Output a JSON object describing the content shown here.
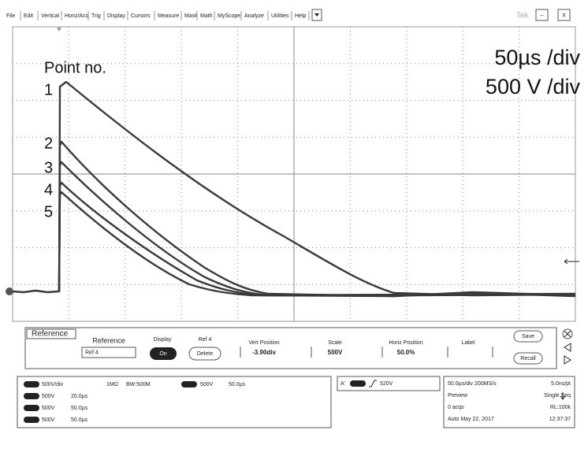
{
  "menu": {
    "items": [
      "File",
      "Edit",
      "Vertical",
      "Horiz/Acq",
      "Trig",
      "Display",
      "Cursors",
      "Measure",
      "Mask",
      "Math",
      "MyScope",
      "Analyze",
      "Utilities",
      "Help"
    ],
    "brand": "Tek",
    "minimize": "–",
    "close": "X"
  },
  "annotations": {
    "point_header": "Point no.",
    "points": [
      "1",
      "2",
      "3",
      "4",
      "5"
    ],
    "time_scale": "50µs /div",
    "volt_scale": "500 V /div"
  },
  "reference_panel": {
    "tab": "Reference",
    "reference_label": "Reference",
    "reference_value": "Ref 4",
    "display_label": "Display",
    "display_button": "On",
    "ref_label": "Ref 4",
    "delete_button": "Delete",
    "vert_label": "Vert Position",
    "vert_value": "-3.90div",
    "scale_label": "Scale",
    "scale_value": "500V",
    "horiz_label": "Horiz Position",
    "horiz_value": "50.0%",
    "label_label": "Label",
    "save_button": "Save",
    "recall_button": "Recall"
  },
  "status": {
    "ch1": "500V/div",
    "impedance": "1MΩ",
    "bandwidth": "BW:500M",
    "ref_badge_volts": "500V",
    "ref_badge_time": "50.0µs",
    "refs": [
      [
        "500V",
        "20.0µs"
      ],
      [
        "500V",
        "50.0µs"
      ],
      [
        "500V",
        "50.0µs"
      ]
    ],
    "trigger_source": "A'",
    "trigger_level": "520V",
    "acq": [
      [
        "50.0µs/div 200MS/s",
        "5.0ns/pt"
      ],
      [
        "Preview",
        "Single Seq"
      ],
      [
        "0 acqs",
        "RL:100k"
      ],
      [
        "Auto   May 22, 2017",
        "12:37:37"
      ]
    ]
  }
}
